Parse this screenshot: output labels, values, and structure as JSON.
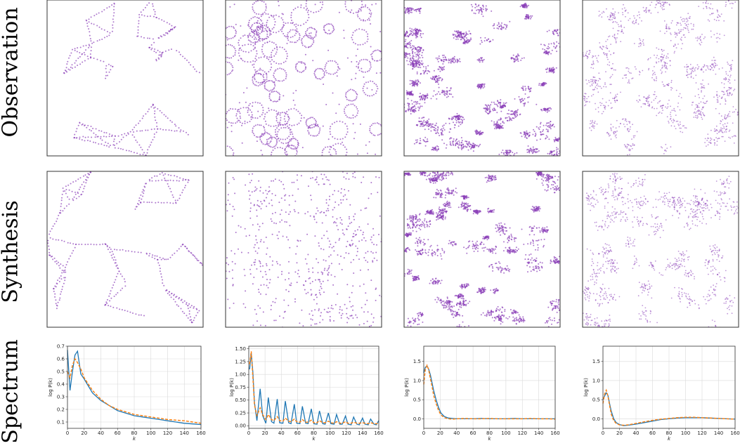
{
  "row_labels": [
    "Observation",
    "Synthesis",
    "Spectrum"
  ],
  "colors": {
    "points": "#8a3fb8",
    "frame": "#333333",
    "synthesis_line": "#1f77b4",
    "observation_line": "#ff7f0e",
    "grid": "#d9d9d9"
  },
  "point_panels": [
    {
      "row": "Observation",
      "pattern": "voronoi-filaments"
    },
    {
      "row": "Observation",
      "pattern": "rings"
    },
    {
      "row": "Observation",
      "pattern": "clustered-clumps"
    },
    {
      "row": "Observation",
      "pattern": "diffuse-random"
    },
    {
      "row": "Synthesis",
      "pattern": "voronoi-filaments"
    },
    {
      "row": "Synthesis",
      "pattern": "rings"
    },
    {
      "row": "Synthesis",
      "pattern": "clustered-clumps"
    },
    {
      "row": "Synthesis",
      "pattern": "diffuse-random"
    }
  ],
  "chart_data": [
    {
      "type": "line",
      "xlabel": "k",
      "ylabel": "log P(k)",
      "xlim": [
        0,
        160
      ],
      "ylim": [
        0.05,
        0.7
      ],
      "xticks": [
        "0",
        "20",
        "40",
        "60",
        "80",
        "100",
        "120",
        "140",
        "160"
      ],
      "yticks": [
        "0.1",
        "0.2",
        "0.3",
        "0.4",
        "0.5",
        "0.6",
        "0.7"
      ],
      "ytick_values": [
        0.1,
        0.2,
        0.3,
        0.4,
        0.5,
        0.6,
        0.7
      ],
      "grid": true,
      "x": [
        0,
        3,
        6,
        9,
        12,
        16,
        20,
        30,
        40,
        50,
        60,
        70,
        80,
        90,
        100,
        110,
        120,
        130,
        140,
        150,
        160
      ],
      "series": [
        {
          "values": [
            0.67,
            0.35,
            0.5,
            0.63,
            0.66,
            0.48,
            0.44,
            0.33,
            0.27,
            0.23,
            0.19,
            0.17,
            0.15,
            0.14,
            0.13,
            0.12,
            0.11,
            0.1,
            0.09,
            0.085,
            0.08
          ]
        },
        {
          "values": [
            0.5,
            0.45,
            0.55,
            0.6,
            0.57,
            0.52,
            0.45,
            0.35,
            0.28,
            0.23,
            0.2,
            0.18,
            0.16,
            0.15,
            0.14,
            0.13,
            0.12,
            0.115,
            0.11,
            0.1,
            0.09
          ]
        }
      ]
    },
    {
      "type": "line",
      "xlabel": "k",
      "ylabel": "log P(k)",
      "xlim": [
        0,
        160
      ],
      "ylim": [
        -0.05,
        1.55
      ],
      "xticks": [
        "0",
        "20",
        "40",
        "60",
        "80",
        "100",
        "120",
        "140",
        "160"
      ],
      "yticks": [
        "0.00",
        "0.25",
        "0.50",
        "0.75",
        "1.00",
        "1.25",
        "1.50"
      ],
      "ytick_values": [
        0,
        0.25,
        0.5,
        0.75,
        1.0,
        1.25,
        1.5
      ],
      "grid": true,
      "x": [
        1,
        3,
        5,
        7,
        10,
        14,
        17,
        21,
        24,
        28,
        31,
        35,
        38,
        42,
        45,
        49,
        52,
        56,
        59,
        63,
        66,
        70,
        73,
        77,
        80,
        84,
        87,
        91,
        94,
        98,
        101,
        105,
        108,
        112,
        115,
        119,
        122,
        126,
        129,
        133,
        136,
        140,
        143,
        147,
        150,
        154,
        157,
        160
      ],
      "series": [
        {
          "values": [
            1.1,
            1.42,
            1.05,
            0.45,
            0.1,
            0.72,
            0.2,
            0.05,
            0.55,
            0.08,
            0.05,
            0.52,
            0.06,
            0.05,
            0.48,
            0.06,
            0.04,
            0.42,
            0.05,
            0.04,
            0.38,
            0.05,
            0.04,
            0.33,
            0.04,
            0.03,
            0.29,
            0.04,
            0.03,
            0.25,
            0.04,
            0.03,
            0.22,
            0.03,
            0.03,
            0.19,
            0.03,
            0.02,
            0.17,
            0.03,
            0.02,
            0.15,
            0.03,
            0.02,
            0.13,
            0.03,
            0.02,
            0.1
          ]
        },
        {
          "values": [
            1.2,
            1.45,
            0.95,
            0.4,
            0.2,
            0.35,
            0.22,
            0.12,
            0.22,
            0.12,
            0.1,
            0.18,
            0.1,
            0.09,
            0.15,
            0.09,
            0.08,
            0.13,
            0.08,
            0.07,
            0.12,
            0.07,
            0.07,
            0.11,
            0.06,
            0.06,
            0.1,
            0.06,
            0.06,
            0.09,
            0.06,
            0.05,
            0.08,
            0.05,
            0.05,
            0.08,
            0.05,
            0.05,
            0.07,
            0.05,
            0.05,
            0.06,
            0.05,
            0.04,
            0.06,
            0.04,
            0.04,
            0.05
          ]
        }
      ]
    },
    {
      "type": "line",
      "xlabel": "k",
      "ylabel": "log P(k)",
      "xlim": [
        0,
        160
      ],
      "ylim": [
        -0.25,
        1.9
      ],
      "xticks": [
        "0",
        "20",
        "40",
        "60",
        "80",
        "100",
        "120",
        "140",
        "160"
      ],
      "yticks": [
        "0.0",
        "0.5",
        "1.0",
        "1.5"
      ],
      "ytick_values": [
        0,
        0.5,
        1.0,
        1.5
      ],
      "grid": true,
      "x": [
        0,
        2,
        4,
        6,
        8,
        10,
        12,
        15,
        18,
        21,
        25,
        30,
        35,
        40,
        50,
        60,
        70,
        80,
        90,
        100,
        110,
        120,
        130,
        140,
        150,
        160
      ],
      "series": [
        {
          "values": [
            1.2,
            1.35,
            1.38,
            1.3,
            1.15,
            0.95,
            0.75,
            0.5,
            0.3,
            0.15,
            0.06,
            0.02,
            0.01,
            0.0,
            0.0,
            0.0,
            0.01,
            0.0,
            0.0,
            0.0,
            0.01,
            0.0,
            0.0,
            0.0,
            0.0,
            0.0
          ]
        },
        {
          "values": [
            0.9,
            1.3,
            1.4,
            1.28,
            1.05,
            0.85,
            0.62,
            0.4,
            0.22,
            0.1,
            0.03,
            0.0,
            -0.01,
            0.0,
            0.01,
            0.0,
            0.0,
            0.01,
            0.0,
            0.0,
            0.0,
            0.0,
            0.01,
            0.0,
            0.0,
            -0.01
          ]
        }
      ]
    },
    {
      "type": "line",
      "xlabel": "k",
      "ylabel": "log P(k)",
      "xlim": [
        0,
        160
      ],
      "ylim": [
        -0.25,
        1.9
      ],
      "xticks": [
        "0",
        "20",
        "40",
        "60",
        "80",
        "100",
        "120",
        "140",
        "160"
      ],
      "yticks": [
        "0.0",
        "0.5",
        "1.0",
        "1.5"
      ],
      "ytick_values": [
        0,
        0.5,
        1.0,
        1.5
      ],
      "grid": true,
      "x": [
        0,
        2,
        4,
        6,
        8,
        10,
        13,
        16,
        20,
        25,
        30,
        40,
        50,
        60,
        70,
        80,
        90,
        100,
        110,
        120,
        130,
        140,
        150,
        160
      ],
      "series": [
        {
          "values": [
            0.5,
            0.6,
            0.68,
            0.62,
            0.4,
            0.2,
            0.0,
            -0.1,
            -0.15,
            -0.18,
            -0.17,
            -0.14,
            -0.1,
            -0.06,
            -0.02,
            0.0,
            0.02,
            0.03,
            0.03,
            0.03,
            0.02,
            0.01,
            0.0,
            -0.01
          ]
        },
        {
          "values": [
            0.4,
            0.65,
            0.75,
            0.6,
            0.35,
            0.12,
            -0.05,
            -0.12,
            -0.16,
            -0.17,
            -0.16,
            -0.12,
            -0.08,
            -0.04,
            -0.01,
            0.01,
            0.03,
            0.04,
            0.04,
            0.03,
            0.02,
            0.01,
            0.0,
            -0.01
          ]
        }
      ]
    }
  ]
}
